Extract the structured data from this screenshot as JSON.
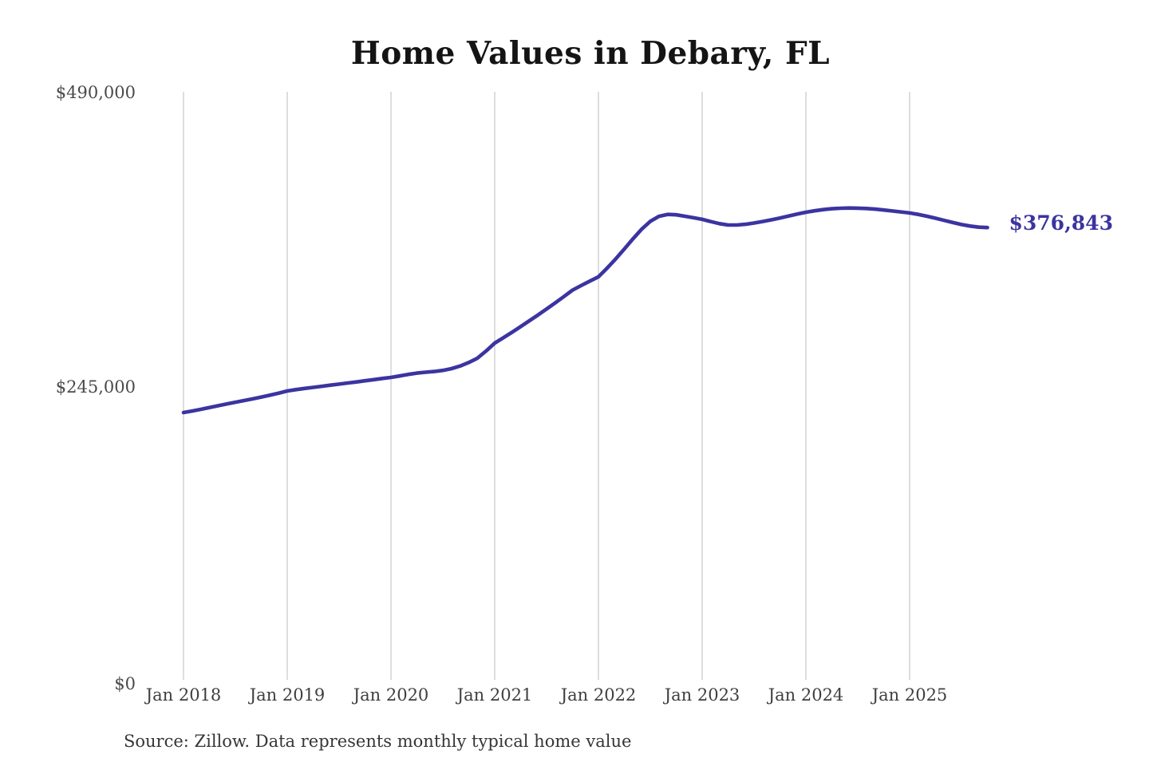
{
  "chart": {
    "title": "Home Values in Debary, FL",
    "source_note": "Source: Zillow. Data represents monthly typical home value",
    "end_label": "$376,843",
    "line_color": "#3b34a0",
    "grid_color": "#cbcbcb",
    "title_color": "#141414"
  },
  "chart_data": {
    "type": "line",
    "title": "Home Values in Debary, FL",
    "ylabel": "",
    "xlabel": "",
    "ylim": [
      0,
      490000
    ],
    "grid": "vertical-yearly",
    "legend": "none",
    "end_annotation": "$376,843",
    "y_ticks": [
      {
        "label": "$0",
        "value": 0
      },
      {
        "label": "$245,000",
        "value": 245000
      },
      {
        "label": "$490,000",
        "value": 490000
      }
    ],
    "x_tick_labels": [
      "Jan 2018",
      "Jan 2019",
      "Jan 2020",
      "Jan 2021",
      "Jan 2022",
      "Jan 2023",
      "Jan 2024",
      "Jan 2025"
    ],
    "x": [
      "2018-01",
      "2018-02",
      "2018-03",
      "2018-04",
      "2018-05",
      "2018-06",
      "2018-07",
      "2018-08",
      "2018-09",
      "2018-10",
      "2018-11",
      "2018-12",
      "2019-01",
      "2019-02",
      "2019-03",
      "2019-04",
      "2019-05",
      "2019-06",
      "2019-07",
      "2019-08",
      "2019-09",
      "2019-10",
      "2019-11",
      "2019-12",
      "2020-01",
      "2020-02",
      "2020-03",
      "2020-04",
      "2020-05",
      "2020-06",
      "2020-07",
      "2020-08",
      "2020-09",
      "2020-10",
      "2020-11",
      "2020-12",
      "2021-01",
      "2021-02",
      "2021-03",
      "2021-04",
      "2021-05",
      "2021-06",
      "2021-07",
      "2021-08",
      "2021-09",
      "2021-10",
      "2021-11",
      "2021-12",
      "2022-01",
      "2022-02",
      "2022-03",
      "2022-04",
      "2022-05",
      "2022-06",
      "2022-07",
      "2022-08",
      "2022-09",
      "2022-10",
      "2022-11",
      "2022-12",
      "2023-01",
      "2023-02",
      "2023-03",
      "2023-04",
      "2023-05",
      "2023-06",
      "2023-07",
      "2023-08",
      "2023-09",
      "2023-10",
      "2023-11",
      "2023-12",
      "2024-01",
      "2024-02",
      "2024-03",
      "2024-04",
      "2024-05",
      "2024-06",
      "2024-07",
      "2024-08",
      "2024-09",
      "2024-10",
      "2024-11",
      "2024-12",
      "2025-01",
      "2025-02",
      "2025-03",
      "2025-04",
      "2025-05",
      "2025-06",
      "2025-07",
      "2025-08",
      "2025-09",
      "2025-10"
    ],
    "values": [
      222700,
      224000,
      225400,
      226900,
      228400,
      229900,
      231300,
      232700,
      234100,
      235600,
      237200,
      238900,
      240700,
      241800,
      242800,
      243700,
      244600,
      245500,
      246400,
      247300,
      248200,
      249200,
      250100,
      251100,
      252000,
      253200,
      254500,
      255600,
      256300,
      256900,
      257800,
      259300,
      261500,
      264400,
      268000,
      274000,
      280600,
      285000,
      289600,
      294300,
      299100,
      304000,
      309000,
      314100,
      319300,
      324700,
      328500,
      332200,
      335800,
      343000,
      350800,
      359000,
      367500,
      375500,
      382000,
      386200,
      387800,
      387500,
      386300,
      385000,
      383700,
      381800,
      380100,
      379000,
      379000,
      379600,
      380600,
      381900,
      383300,
      384800,
      386400,
      388100,
      389600,
      390800,
      391800,
      392500,
      392900,
      393100,
      393000,
      392700,
      392200,
      391500,
      390700,
      389900,
      389000,
      387800,
      386300,
      384600,
      382800,
      381000,
      379400,
      378100,
      377200,
      376843
    ]
  }
}
